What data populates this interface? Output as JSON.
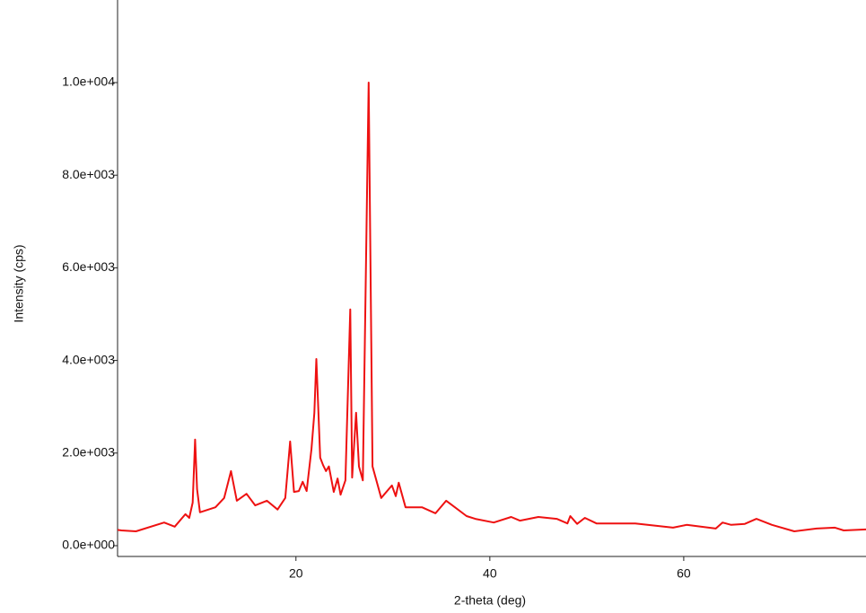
{
  "chart_data": {
    "type": "line",
    "x_label": "2-theta (deg)",
    "y_label": "Intensity (cps)",
    "xlim": [
      1.6,
      78.8
    ],
    "ylim": [
      -233,
      11783
    ],
    "xticks": [
      20,
      40,
      60
    ],
    "yticks": [
      {
        "value": 0,
        "label": "0.0e+000"
      },
      {
        "value": 2000,
        "label": "2.0e+003"
      },
      {
        "value": 4000,
        "label": "4.0e+003"
      },
      {
        "value": 6000,
        "label": "6.0e+003"
      },
      {
        "value": 8000,
        "label": "8.0e+003"
      },
      {
        "value": 10000,
        "label": "1.0e+004"
      }
    ],
    "grid": false,
    "series": [
      {
        "color": "#ee1111",
        "x": [
          1.6,
          2.0,
          3.5,
          6.4,
          7.5,
          8.6,
          9.0,
          9.35,
          9.6,
          9.8,
          10.1,
          11.7,
          12.6,
          13.3,
          13.9,
          14.9,
          15.8,
          17.0,
          18.1,
          18.9,
          19.4,
          19.8,
          20.3,
          20.7,
          21.1,
          21.6,
          21.9,
          22.1,
          22.5,
          22.8,
          23.1,
          23.4,
          23.9,
          24.3,
          24.6,
          25.1,
          25.6,
          25.8,
          26.2,
          26.5,
          26.9,
          27.5,
          27.9,
          28.8,
          29.9,
          30.3,
          30.6,
          31.3,
          33.0,
          34.4,
          35.5,
          37.6,
          38.5,
          40.4,
          42.2,
          43.1,
          45.0,
          46.9,
          48.0,
          48.3,
          49.0,
          49.8,
          51.0,
          55.0,
          58.9,
          60.3,
          63.3,
          64.0,
          64.9,
          66.3,
          67.5,
          69.1,
          71.4,
          73.7,
          75.6,
          76.5,
          78.8
        ],
        "values": [
          340,
          330,
          310,
          500,
          410,
          680,
          600,
          930,
          2290,
          1220,
          720,
          830,
          1030,
          1610,
          970,
          1120,
          870,
          970,
          780,
          1030,
          2250,
          1160,
          1180,
          1380,
          1180,
          2090,
          2870,
          4030,
          1900,
          1740,
          1610,
          1710,
          1160,
          1450,
          1100,
          1410,
          5100,
          1470,
          2870,
          1710,
          1410,
          10000,
          1710,
          1030,
          1300,
          1070,
          1360,
          830,
          830,
          700,
          970,
          640,
          580,
          500,
          620,
          540,
          620,
          580,
          480,
          640,
          470,
          600,
          480,
          480,
          390,
          450,
          370,
          500,
          450,
          470,
          580,
          450,
          310,
          370,
          390,
          330,
          350
        ]
      }
    ]
  }
}
